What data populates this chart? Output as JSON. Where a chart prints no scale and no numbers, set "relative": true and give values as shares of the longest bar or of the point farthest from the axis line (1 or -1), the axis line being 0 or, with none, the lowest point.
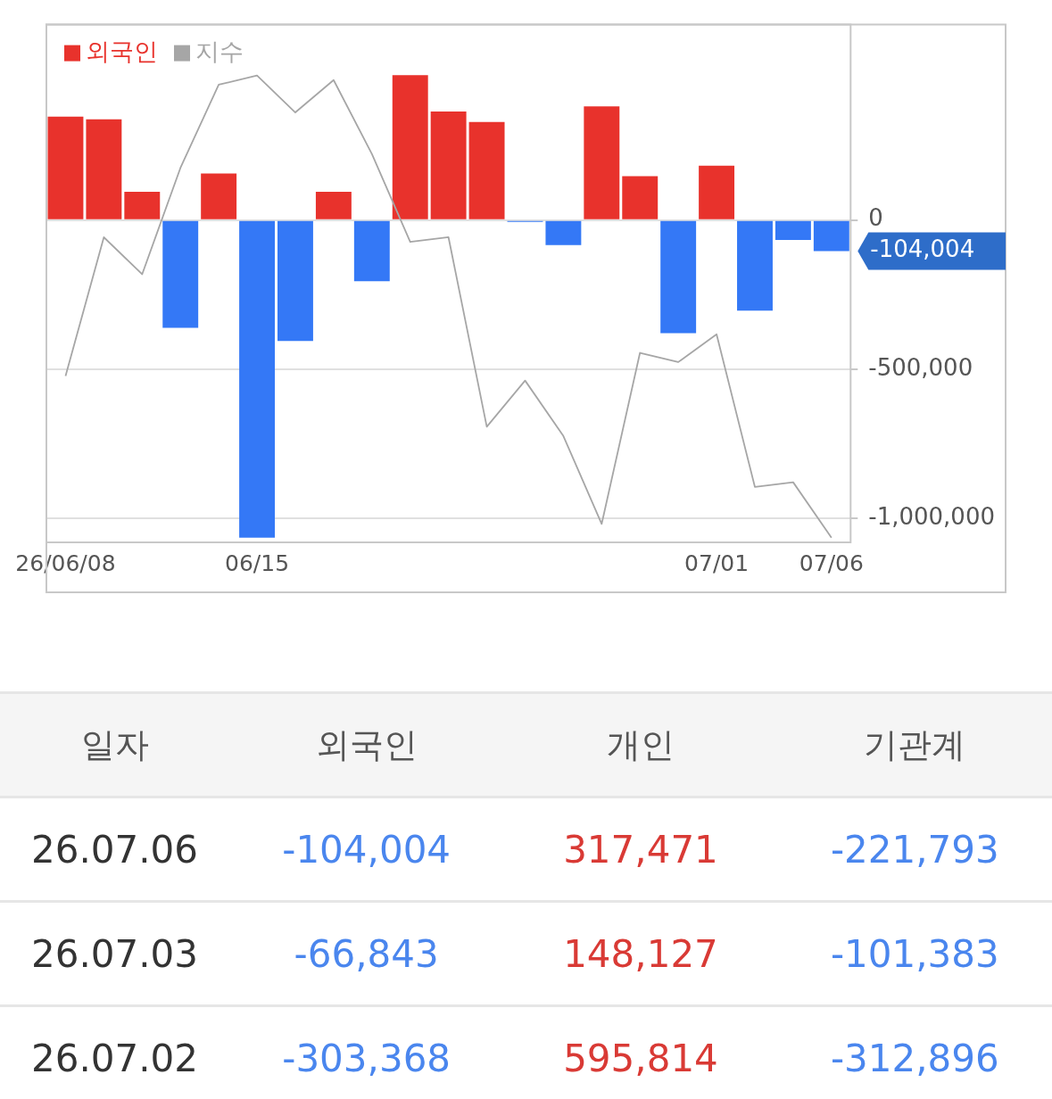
{
  "chart_data": [
    {
      "type": "bar",
      "categories": [
        "26/06/08",
        null,
        null,
        null,
        null,
        "06/15",
        null,
        null,
        null,
        null,
        null,
        null,
        null,
        null,
        null,
        null,
        null,
        "07/01",
        null,
        null,
        "07/06"
      ],
      "series": [
        {
          "name": "외국인",
          "type": "bar",
          "color": "#e8322c",
          "colors": [
            "#e8322c",
            "#e8322c",
            "#e8322c",
            "#3478f6",
            "#e8322c",
            "#3478f6",
            "#3478f6",
            "#e8322c",
            "#3478f6",
            "#e8322c",
            "#e8322c",
            "#e8322c",
            "#3478f6",
            "#3478f6",
            "#e8322c",
            "#e8322c",
            "#3478f6",
            "#e8322c",
            "#3478f6",
            "#3478f6",
            "#3478f6"
          ],
          "values": [
            347000,
            338000,
            95000,
            -361000,
            156000,
            -1064000,
            -405000,
            95000,
            -205000,
            486000,
            364000,
            329000,
            -6000,
            -84000,
            381000,
            147000,
            -379000,
            182000,
            -303368,
            -66843,
            -104004
          ]
        }
      ],
      "ylim": [
        -1080000,
        655000
      ],
      "yticks": [
        0,
        {
          "value": -500000,
          "label": "-500,000"
        },
        {
          "value": -1000000,
          "label": "-1,000,000"
        }
      ],
      "grid": "y",
      "legend": "top left",
      "annotations": [
        {
          "text": "-104,004",
          "x": "07/06",
          "y": -104004
        }
      ]
    },
    {
      "type": "line",
      "relative": true,
      "series": [
        {
          "name": "지수",
          "color": "#a6a6a6",
          "values": [
            0.35,
            0.65,
            0.57,
            0.8,
            0.98,
            1,
            0.92,
            0.99,
            0.83,
            0.64,
            0.65,
            0.24,
            0.34,
            0.22,
            0.03,
            0.4,
            0.38,
            0.44,
            0.11,
            0.12,
            0
          ]
        }
      ],
      "legend": "top left",
      "marker": "none"
    },
    {
      "type": "heatmap",
      "ylabel": "일자",
      "categories": [
        "외국인",
        "개인",
        "기관계"
      ],
      "y_categories": [
        "26.07.06",
        "26.07.03",
        "26.07.02"
      ],
      "cells": [
        [
          -104004,
          317471,
          -221793
        ],
        [
          -66843,
          148127,
          -101383
        ],
        [
          -303368,
          595814,
          -312896
        ]
      ],
      "cell_labels": [
        [
          "-104,004",
          "317,471",
          "-221,793"
        ],
        [
          "-66,843",
          "148,127",
          "-101,383"
        ],
        [
          "-303,368",
          "595,814",
          "-312,896"
        ]
      ]
    }
  ]
}
